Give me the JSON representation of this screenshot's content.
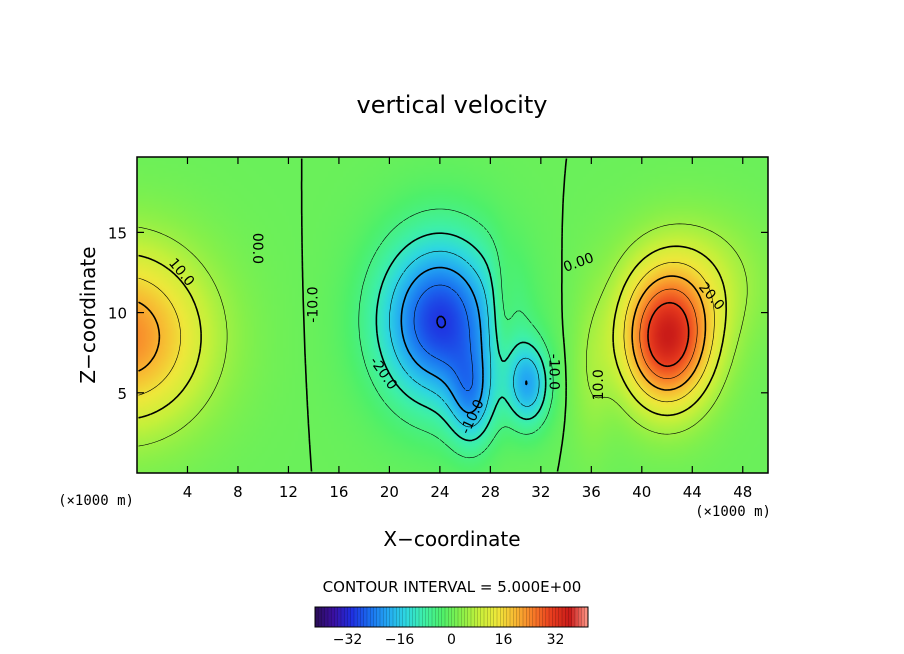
{
  "chart_data": {
    "type": "heatmap",
    "title": "vertical velocity",
    "xlabel": "X−coordinate",
    "ylabel": "Z−coordinate",
    "x_units": "(×1000 m)",
    "y_units": "(×1000 m)",
    "xlim": [
      0,
      50
    ],
    "ylim": [
      0,
      19.7
    ],
    "x_ticks": [
      4,
      8,
      12,
      16,
      20,
      24,
      28,
      32,
      36,
      40,
      44,
      48
    ],
    "y_ticks": [
      5,
      10,
      15
    ],
    "contour_interval_text": "CONTOUR INTERVAL = 5.000E+00",
    "colorbar": {
      "min": -42,
      "max": 42,
      "ticks": [
        -32,
        -16,
        0,
        16,
        32
      ],
      "colors": [
        "#2a0d55",
        "#3a0fa0",
        "#1f2ee0",
        "#1a6ef0",
        "#23a8f2",
        "#2ed8e0",
        "#3ef0a6",
        "#4ef06a",
        "#86f04a",
        "#c6f03a",
        "#eee83a",
        "#f8b832",
        "#f87a28",
        "#e83c1e",
        "#c81a18",
        "#ff9a8a"
      ]
    },
    "features": [
      {
        "name": "updraft-left-edge",
        "x": 0,
        "z": 8.5,
        "peak": 22
      },
      {
        "name": "downdraft-center",
        "x": 24,
        "z": 9.5,
        "peak": -30
      },
      {
        "name": "downdraft-lower",
        "x": 31,
        "z": 5.5,
        "peak": -18
      },
      {
        "name": "updraft-right",
        "x": 42,
        "z": 8,
        "peak": 33
      }
    ],
    "contour_labels": [
      {
        "text": "10.0",
        "x": 3.5,
        "z": 12.5,
        "angle": 50
      },
      {
        "text": "00.0",
        "x": 9.5,
        "z": 14,
        "angle": 90
      },
      {
        "text": "-10.0",
        "x": 14,
        "z": 10.5,
        "angle": -90
      },
      {
        "text": "-20.0",
        "x": 19.5,
        "z": 6.2,
        "angle": 55
      },
      {
        "text": "-10.0",
        "x": 26.6,
        "z": 3.5,
        "angle": -65
      },
      {
        "text": "-10.0",
        "x": 33,
        "z": 6.3,
        "angle": 90
      },
      {
        "text": "0.00",
        "x": 35,
        "z": 13.1,
        "angle": -20
      },
      {
        "text": "10.0",
        "x": 36.6,
        "z": 5.5,
        "angle": -90
      },
      {
        "text": "20.0",
        "x": 45.5,
        "z": 11,
        "angle": 50
      }
    ]
  }
}
